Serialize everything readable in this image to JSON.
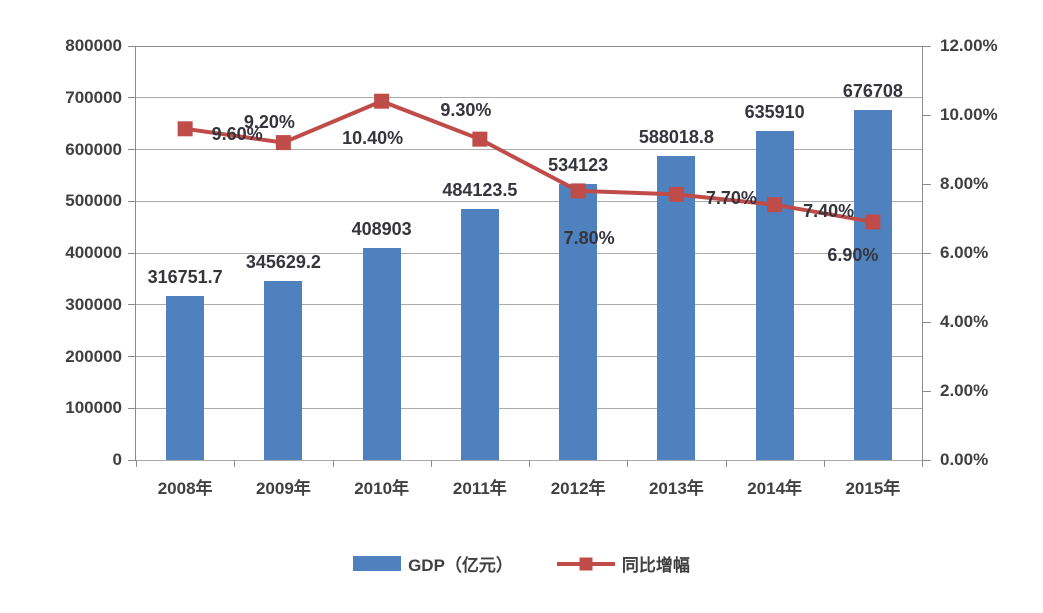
{
  "chart_data": {
    "type": "combo",
    "categories": [
      "2008年",
      "2009年",
      "2010年",
      "2011年",
      "2012年",
      "2013年",
      "2014年",
      "2015年"
    ],
    "series": [
      {
        "name": "GDP（亿元）",
        "type": "bar",
        "axis": "left",
        "color": "#4e81bd",
        "values": [
          316751.7,
          345629.2,
          408903,
          484123.5,
          534123,
          588018.8,
          635910,
          676708
        ],
        "data_labels": [
          "316751.7",
          "345629.2",
          "408903",
          "484123.5",
          "534123",
          "588018.8",
          "635910",
          "676708"
        ]
      },
      {
        "name": "同比增幅",
        "type": "line",
        "axis": "right",
        "color": "#bf4c49",
        "values": [
          9.6,
          9.2,
          10.4,
          9.3,
          7.8,
          7.7,
          7.4,
          6.9
        ],
        "data_labels": [
          "9.60%",
          "9.20%",
          "10.40%",
          "9.30%",
          "7.80%",
          "7.70%",
          "7.40%",
          "6.90%"
        ],
        "label_offsets": [
          [
            52,
            5
          ],
          [
            -14,
            -21
          ],
          [
            -9,
            37
          ],
          [
            -14,
            -29
          ],
          [
            11,
            47
          ],
          [
            55,
            4
          ],
          [
            54,
            6
          ],
          [
            -20,
            33
          ]
        ]
      }
    ],
    "left_axis": {
      "min": 0,
      "max": 800000,
      "step": 100000,
      "tick_labels": [
        "0",
        "100000",
        "200000",
        "300000",
        "400000",
        "500000",
        "600000",
        "700000",
        "800000"
      ]
    },
    "right_axis": {
      "min": 0,
      "max": 12,
      "step": 2,
      "tick_labels": [
        "0.00%",
        "2.00%",
        "4.00%",
        "6.00%",
        "8.00%",
        "10.00%",
        "12.00%"
      ]
    },
    "grid": true,
    "legend_position": "bottom"
  },
  "colors": {
    "bar": "#4e81bd",
    "line": "#bf4c49",
    "text": "#404040",
    "data_label_text": "#35353d",
    "gridline": "#ababab",
    "axis": "#8c8c8c",
    "background": "#ffffff"
  }
}
